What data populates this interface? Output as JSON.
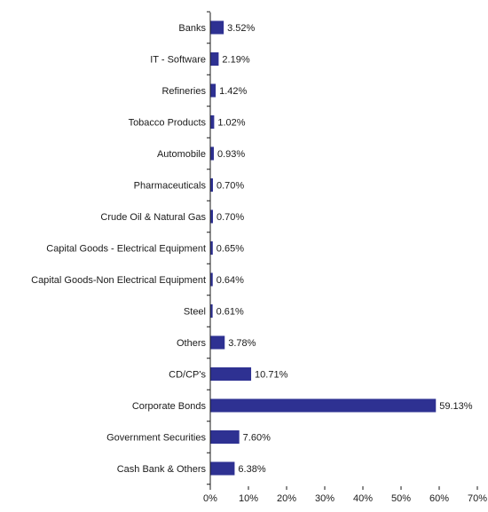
{
  "chart_data": {
    "type": "bar",
    "orientation": "horizontal",
    "categories": [
      "Banks",
      "IT - Software",
      "Refineries",
      "Tobacco Products",
      "Automobile",
      "Pharmaceuticals",
      "Crude Oil & Natural Gas",
      "Capital Goods - Electrical Equipment",
      "Capital Goods-Non Electrical Equipment",
      "Steel",
      "Others",
      "CD/CP's",
      "Corporate Bonds",
      "Government Securities",
      "Cash Bank & Others"
    ],
    "values": [
      3.52,
      2.19,
      1.42,
      1.02,
      0.93,
      0.7,
      0.7,
      0.65,
      0.64,
      0.61,
      3.78,
      10.71,
      59.13,
      7.6,
      6.38
    ],
    "value_labels": [
      "3.52%",
      "2.19%",
      "1.42%",
      "1.02%",
      "0.93%",
      "0.70%",
      "0.70%",
      "0.65%",
      "0.64%",
      "0.61%",
      "3.78%",
      "10.71%",
      "59.13%",
      "7.60%",
      "6.38%"
    ],
    "xlim": [
      0,
      70
    ],
    "x_ticks": [
      "0%",
      "10%",
      "20%",
      "30%",
      "40%",
      "50%",
      "60%",
      "70%"
    ],
    "title": "",
    "xlabel": "",
    "ylabel": "",
    "grid": false,
    "legend": "none",
    "bar_color": "#2e3192"
  }
}
